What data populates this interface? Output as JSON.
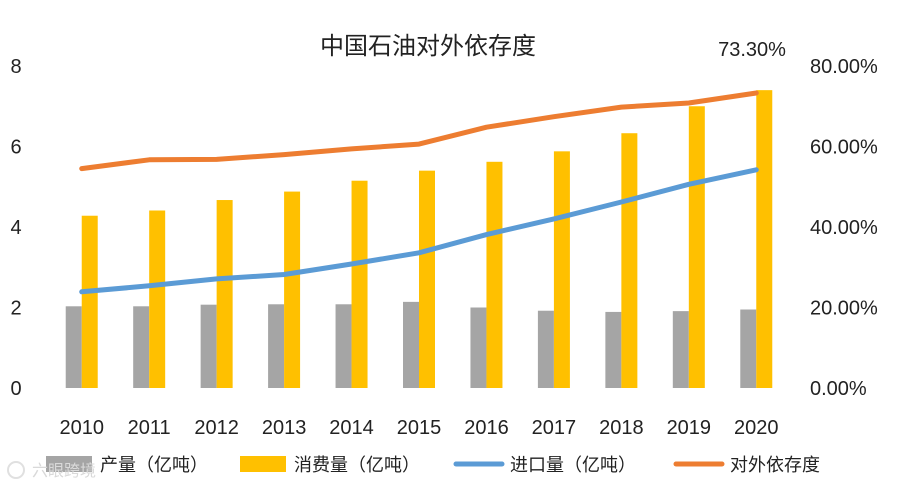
{
  "chart_data": {
    "type": "bar",
    "title": "中国石油对外依存度",
    "categories": [
      "2010",
      "2011",
      "2012",
      "2013",
      "2014",
      "2015",
      "2016",
      "2017",
      "2018",
      "2019",
      "2020"
    ],
    "series": [
      {
        "name": "产量（亿吨）",
        "kind": "bar",
        "axis": "left",
        "color": "#a5a5a5",
        "values": [
          2.03,
          2.03,
          2.07,
          2.08,
          2.08,
          2.14,
          2.0,
          1.92,
          1.89,
          1.91,
          1.95
        ]
      },
      {
        "name": "消费量（亿吨）",
        "kind": "bar",
        "axis": "left",
        "color": "#ffc000",
        "values": [
          4.28,
          4.41,
          4.67,
          4.88,
          5.15,
          5.4,
          5.62,
          5.88,
          6.33,
          7.0,
          7.4
        ]
      },
      {
        "name": "进口量（亿吨）",
        "kind": "line",
        "axis": "left",
        "color": "#5b9bd5",
        "values": [
          2.39,
          2.54,
          2.71,
          2.82,
          3.08,
          3.36,
          3.81,
          4.2,
          4.62,
          5.06,
          5.42
        ]
      },
      {
        "name": "对外依存度",
        "kind": "line",
        "axis": "right",
        "color": "#ed7d31",
        "values": [
          54.5,
          56.7,
          56.8,
          58.0,
          59.4,
          60.6,
          64.8,
          67.4,
          69.8,
          70.8,
          73.3
        ]
      }
    ],
    "y_left": {
      "min": 0,
      "max": 8,
      "ticks": [
        "0",
        "2",
        "4",
        "6",
        "8"
      ]
    },
    "y_right": {
      "min": 0,
      "max": 80,
      "ticks": [
        "0.00%",
        "20.00%",
        "40.00%",
        "60.00%",
        "80.00%"
      ]
    },
    "annotation": "73.30%",
    "legend_position": "bottom",
    "grid": false
  },
  "watermark": "六眼跨境"
}
